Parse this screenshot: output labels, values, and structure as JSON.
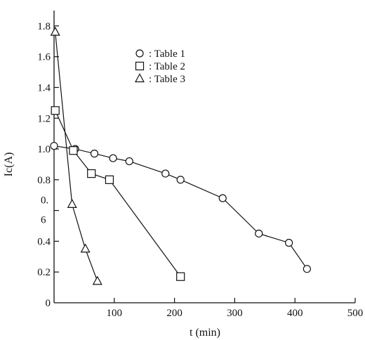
{
  "chart_data": {
    "type": "line",
    "title": "",
    "xlabel": "t (min)",
    "ylabel": "Ic(A)",
    "xlim": [
      0,
      500
    ],
    "ylim": [
      0,
      1.9
    ],
    "x_ticks": [
      "100",
      "200",
      "300",
      "400",
      "500"
    ],
    "y_ticks": [
      {
        "value": 0,
        "label": "0"
      },
      {
        "value": 0.2,
        "label": "0.2"
      },
      {
        "value": 0.4,
        "label": "0.4"
      },
      {
        "value": 0.8,
        "label": "0.8"
      },
      {
        "value": 1.0,
        "label": "1.0"
      },
      {
        "value": 1.2,
        "label": "1.2"
      },
      {
        "value": 1.4,
        "label": "1.4"
      },
      {
        "value": 1.6,
        "label": "1.6"
      },
      {
        "value": 1.8,
        "label": "1.8"
      }
    ],
    "y_tick_split": [
      {
        "value": 0.6,
        "label_top": "0.",
        "label_bottom": "6"
      }
    ],
    "grid": false,
    "legend_position": "top-center",
    "series": [
      {
        "name": ": Table 1",
        "marker": "circle",
        "x": [
          0,
          35,
          67,
          98,
          125,
          185,
          210,
          280,
          340,
          390,
          420
        ],
        "y": [
          1.02,
          1.0,
          0.97,
          0.94,
          0.92,
          0.84,
          0.8,
          0.68,
          0.45,
          0.39,
          0.22
        ]
      },
      {
        "name": ": Table 2",
        "marker": "square",
        "x": [
          2,
          32,
          62,
          92,
          210
        ],
        "y": [
          1.25,
          0.99,
          0.84,
          0.8,
          0.17
        ]
      },
      {
        "name": ": Table 3",
        "marker": "triangle",
        "x": [
          2,
          30,
          52,
          72
        ],
        "y": [
          1.76,
          0.64,
          0.35,
          0.14
        ]
      }
    ]
  }
}
